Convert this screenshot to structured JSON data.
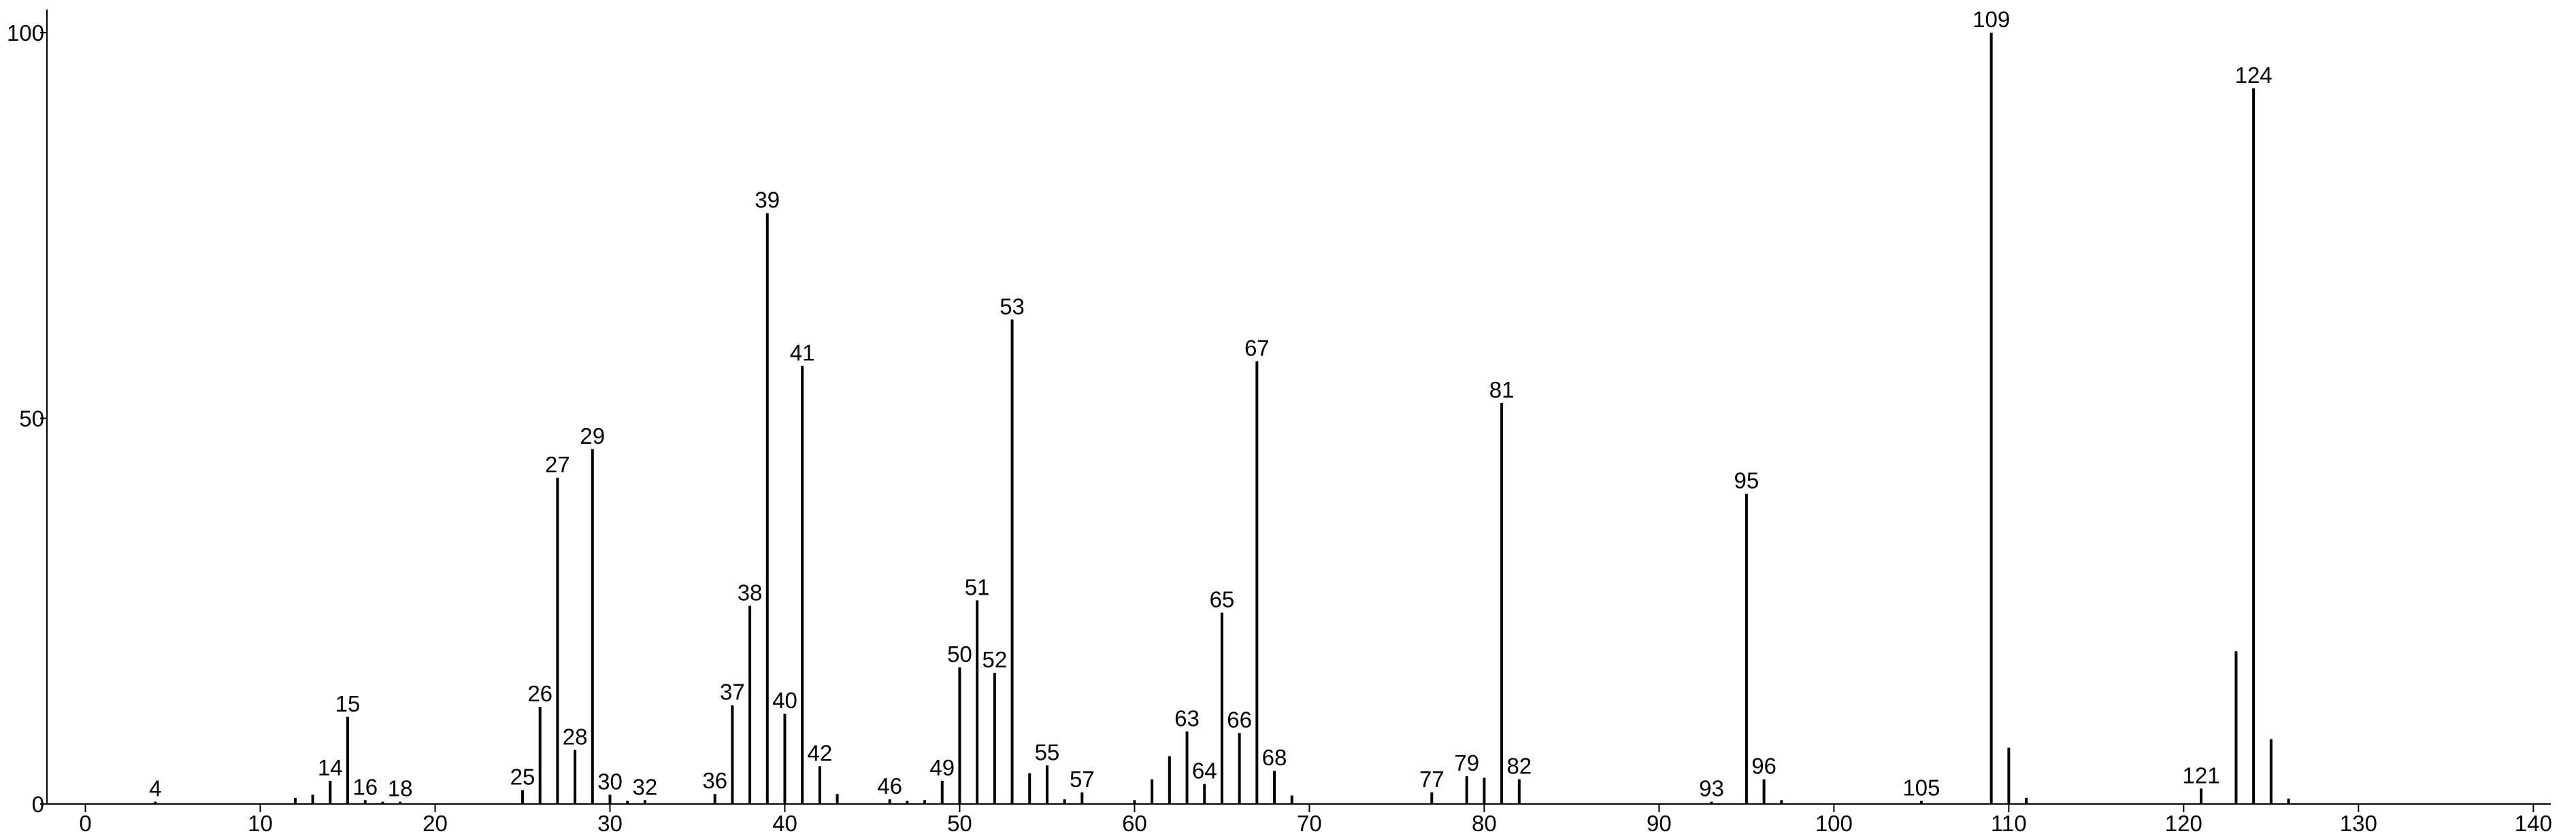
{
  "chart_data": {
    "type": "stick",
    "x": [
      4,
      12,
      13,
      14,
      15,
      16,
      17,
      18,
      25,
      26,
      27,
      28,
      29,
      30,
      31,
      32,
      36,
      37,
      38,
      39,
      40,
      41,
      42,
      43,
      46,
      47,
      48,
      49,
      50,
      51,
      52,
      53,
      54,
      55,
      56,
      57,
      60,
      61,
      62,
      63,
      64,
      65,
      66,
      67,
      68,
      69,
      77,
      79,
      80,
      81,
      82,
      93,
      95,
      96,
      97,
      105,
      109,
      110,
      111,
      121,
      123,
      124,
      125,
      126
    ],
    "values": [
      0.3,
      0.8,
      1.2,
      3,
      11.3,
      0.5,
      0.3,
      0.3,
      1.8,
      12.6,
      42.3,
      7,
      46,
      1.2,
      0.4,
      0.5,
      1.3,
      12.8,
      25.7,
      76.6,
      11.7,
      56.8,
      4.9,
      1.3,
      0.6,
      0.4,
      0.5,
      3,
      17.7,
      26.4,
      17,
      62.8,
      4,
      5,
      0.6,
      1.5,
      0.5,
      3.2,
      6.2,
      9.4,
      2.6,
      24.8,
      9.2,
      57.4,
      4.3,
      1.1,
      1.5,
      3.6,
      3.4,
      52,
      3.2,
      0.3,
      40.2,
      3.2,
      0.5,
      0.4,
      100,
      7.3,
      0.8,
      2,
      19.8,
      92.8,
      8.4,
      0.7
    ],
    "point_labels": [
      "4",
      null,
      null,
      "14",
      "15",
      "16",
      null,
      "18",
      "25",
      "26",
      "27",
      "28",
      "29",
      "30",
      null,
      "32",
      "36",
      "37",
      "38",
      "39",
      "40",
      "41",
      "42",
      null,
      "46",
      null,
      null,
      "49",
      "50",
      "51",
      "52",
      "53",
      null,
      "55",
      null,
      "57",
      null,
      null,
      null,
      "63",
      "64",
      "65",
      "66",
      "67",
      "68",
      null,
      "77",
      "79",
      null,
      "81",
      "82",
      "93",
      "95",
      "96",
      null,
      "105",
      "109",
      null,
      null,
      "121",
      null,
      "124",
      null,
      null
    ],
    "color": "#000000",
    "xlim": [
      -2.2,
      141
    ],
    "ylim": [
      0,
      103
    ],
    "xticks": [
      0,
      10,
      20,
      30,
      40,
      50,
      60,
      70,
      80,
      90,
      100,
      110,
      120,
      130,
      140
    ],
    "yticks": [
      0,
      50,
      100
    ],
    "grid": false
  }
}
